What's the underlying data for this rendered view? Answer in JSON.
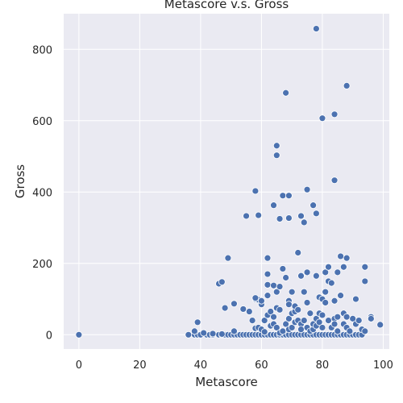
{
  "chart_data": {
    "type": "scatter",
    "title": "Metascore v.s. Gross",
    "xlabel": "Metascore",
    "ylabel": "Gross",
    "xlim": [
      -5,
      102
    ],
    "ylim": [
      -40,
      900
    ],
    "xticks": [
      0,
      20,
      40,
      60,
      80,
      100
    ],
    "yticks": [
      0,
      200,
      400,
      600,
      800
    ],
    "grid": true,
    "background": "#eaeaf2",
    "grid_color": "#ffffff",
    "point_color": "#4c72b0",
    "point_edge_color": "#ffffff",
    "series": [
      {
        "points": [
          [
            0,
            0
          ],
          [
            36,
            0
          ],
          [
            38,
            0
          ],
          [
            39,
            0
          ],
          [
            40,
            0
          ],
          [
            42,
            0
          ],
          [
            43,
            0
          ],
          [
            44,
            0
          ],
          [
            46,
            0
          ],
          [
            47,
            0
          ],
          [
            48,
            0
          ],
          [
            49,
            0
          ],
          [
            50,
            0
          ],
          [
            51,
            0
          ],
          [
            52,
            0
          ],
          [
            53,
            0
          ],
          [
            54,
            0
          ],
          [
            55,
            0
          ],
          [
            56,
            0
          ],
          [
            57,
            0
          ],
          [
            58,
            0
          ],
          [
            59,
            0
          ],
          [
            60,
            0
          ],
          [
            61,
            0
          ],
          [
            62,
            0
          ],
          [
            63,
            0
          ],
          [
            64,
            0
          ],
          [
            65,
            0
          ],
          [
            66,
            0
          ],
          [
            67,
            0
          ],
          [
            68,
            0
          ],
          [
            69,
            0
          ],
          [
            70,
            0
          ],
          [
            71,
            0
          ],
          [
            72,
            0
          ],
          [
            73,
            0
          ],
          [
            74,
            0
          ],
          [
            75,
            0
          ],
          [
            76,
            0
          ],
          [
            77,
            0
          ],
          [
            78,
            0
          ],
          [
            79,
            0
          ],
          [
            80,
            0
          ],
          [
            81,
            0
          ],
          [
            82,
            0
          ],
          [
            83,
            0
          ],
          [
            84,
            0
          ],
          [
            85,
            0
          ],
          [
            86,
            0
          ],
          [
            87,
            0
          ],
          [
            88,
            0
          ],
          [
            89,
            0
          ],
          [
            90,
            0
          ],
          [
            91,
            0
          ],
          [
            92,
            0
          ],
          [
            93,
            0
          ],
          [
            38,
            10
          ],
          [
            39,
            35
          ],
          [
            41,
            5
          ],
          [
            44,
            3
          ],
          [
            47,
            2
          ],
          [
            51,
            10
          ],
          [
            54,
            72
          ],
          [
            56,
            65
          ],
          [
            57,
            40
          ],
          [
            58,
            18
          ],
          [
            58,
            100
          ],
          [
            59,
            20
          ],
          [
            59,
            98
          ],
          [
            60,
            85
          ],
          [
            60,
            15
          ],
          [
            61,
            40
          ],
          [
            61,
            8
          ],
          [
            62,
            55
          ],
          [
            62,
            110
          ],
          [
            62,
            140
          ],
          [
            62,
            170
          ],
          [
            62,
            215
          ],
          [
            63,
            65
          ],
          [
            63,
            25
          ],
          [
            64,
            138
          ],
          [
            64,
            30
          ],
          [
            64,
            50
          ],
          [
            65,
            120
          ],
          [
            65,
            75
          ],
          [
            65,
            20
          ],
          [
            66,
            70
          ],
          [
            66,
            5
          ],
          [
            66,
            135
          ],
          [
            67,
            185
          ],
          [
            67,
            10
          ],
          [
            68,
            160
          ],
          [
            68,
            30
          ],
          [
            69,
            95
          ],
          [
            69,
            45
          ],
          [
            69,
            15
          ],
          [
            69,
            85
          ],
          [
            70,
            20
          ],
          [
            70,
            60
          ],
          [
            70,
            120
          ],
          [
            71,
            65
          ],
          [
            71,
            80
          ],
          [
            71,
            35
          ],
          [
            72,
            230
          ],
          [
            72,
            70
          ],
          [
            72,
            40
          ],
          [
            73,
            165
          ],
          [
            73,
            30
          ],
          [
            73,
            15
          ],
          [
            74,
            120
          ],
          [
            74,
            40
          ],
          [
            75,
            175
          ],
          [
            75,
            90
          ],
          [
            75,
            20
          ],
          [
            76,
            60
          ],
          [
            76,
            10
          ],
          [
            77,
            15
          ],
          [
            77,
            30
          ],
          [
            78,
            165
          ],
          [
            78,
            45
          ],
          [
            78,
            25
          ],
          [
            79,
            105
          ],
          [
            79,
            60
          ],
          [
            79,
            35
          ],
          [
            80,
            55
          ],
          [
            80,
            20
          ],
          [
            80,
            100
          ],
          [
            81,
            175
          ],
          [
            81,
            120
          ],
          [
            81,
            90
          ],
          [
            82,
            190
          ],
          [
            82,
            150
          ],
          [
            82,
            40
          ],
          [
            83,
            145
          ],
          [
            83,
            20
          ],
          [
            84,
            45
          ],
          [
            84,
            95
          ],
          [
            84,
            30
          ],
          [
            85,
            175
          ],
          [
            85,
            10
          ],
          [
            85,
            50
          ],
          [
            86,
            220
          ],
          [
            86,
            110
          ],
          [
            87,
            60
          ],
          [
            87,
            190
          ],
          [
            87,
            30
          ],
          [
            88,
            215
          ],
          [
            88,
            20
          ],
          [
            88,
            50
          ],
          [
            89,
            10
          ],
          [
            90,
            45
          ],
          [
            91,
            100
          ],
          [
            91,
            30
          ],
          [
            92,
            40
          ],
          [
            93,
            15
          ],
          [
            94,
            190
          ],
          [
            94,
            150
          ],
          [
            94,
            10
          ],
          [
            96,
            50
          ],
          [
            96,
            45
          ],
          [
            99,
            28
          ],
          [
            46,
            143
          ],
          [
            47,
            148
          ],
          [
            48,
            75
          ],
          [
            49,
            215
          ],
          [
            51,
            87
          ],
          [
            58,
            103
          ],
          [
            60,
            95
          ],
          [
            55,
            333
          ],
          [
            58,
            403
          ],
          [
            59,
            335
          ],
          [
            64,
            363
          ],
          [
            65,
            503
          ],
          [
            65,
            530
          ],
          [
            66,
            325
          ],
          [
            67,
            390
          ],
          [
            69,
            390
          ],
          [
            69,
            327
          ],
          [
            73,
            333
          ],
          [
            74,
            315
          ],
          [
            75,
            407
          ],
          [
            77,
            363
          ],
          [
            78,
            340
          ],
          [
            78,
            858
          ],
          [
            68,
            678
          ],
          [
            80,
            607
          ],
          [
            84,
            618
          ],
          [
            84,
            433
          ],
          [
            88,
            698
          ]
        ]
      }
    ]
  }
}
